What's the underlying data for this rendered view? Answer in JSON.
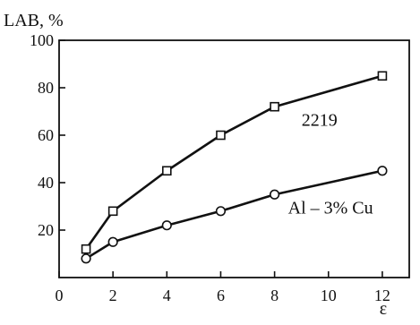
{
  "chart_data": {
    "type": "line",
    "ylabel": "LAB, %",
    "xlabel": "ε",
    "x_ticks": [
      "0",
      "2",
      "4",
      "6",
      "8",
      "10",
      "12"
    ],
    "y_ticks": [
      "20",
      "40",
      "60",
      "80",
      "100"
    ],
    "x_tick_values": [
      0,
      2,
      4,
      6,
      8,
      10,
      12
    ],
    "y_tick_values": [
      20,
      40,
      60,
      80,
      100
    ],
    "xlim": [
      0,
      13
    ],
    "ylim": [
      0,
      100
    ],
    "grid": false,
    "series": [
      {
        "name": "2219",
        "marker": "square",
        "x": [
          1,
          2,
          4,
          6,
          8,
          12
        ],
        "y": [
          12,
          28,
          45,
          60,
          72,
          85
        ]
      },
      {
        "name": "Al – 3% Cu",
        "marker": "circle",
        "x": [
          1,
          2,
          4,
          6,
          8,
          12
        ],
        "y": [
          8,
          15,
          22,
          28,
          35,
          45
        ]
      }
    ],
    "annotations": [
      {
        "text": "2219",
        "x": 9.0,
        "y": 64
      },
      {
        "text": "Al – 3% Cu",
        "x": 8.5,
        "y": 27
      }
    ]
  }
}
